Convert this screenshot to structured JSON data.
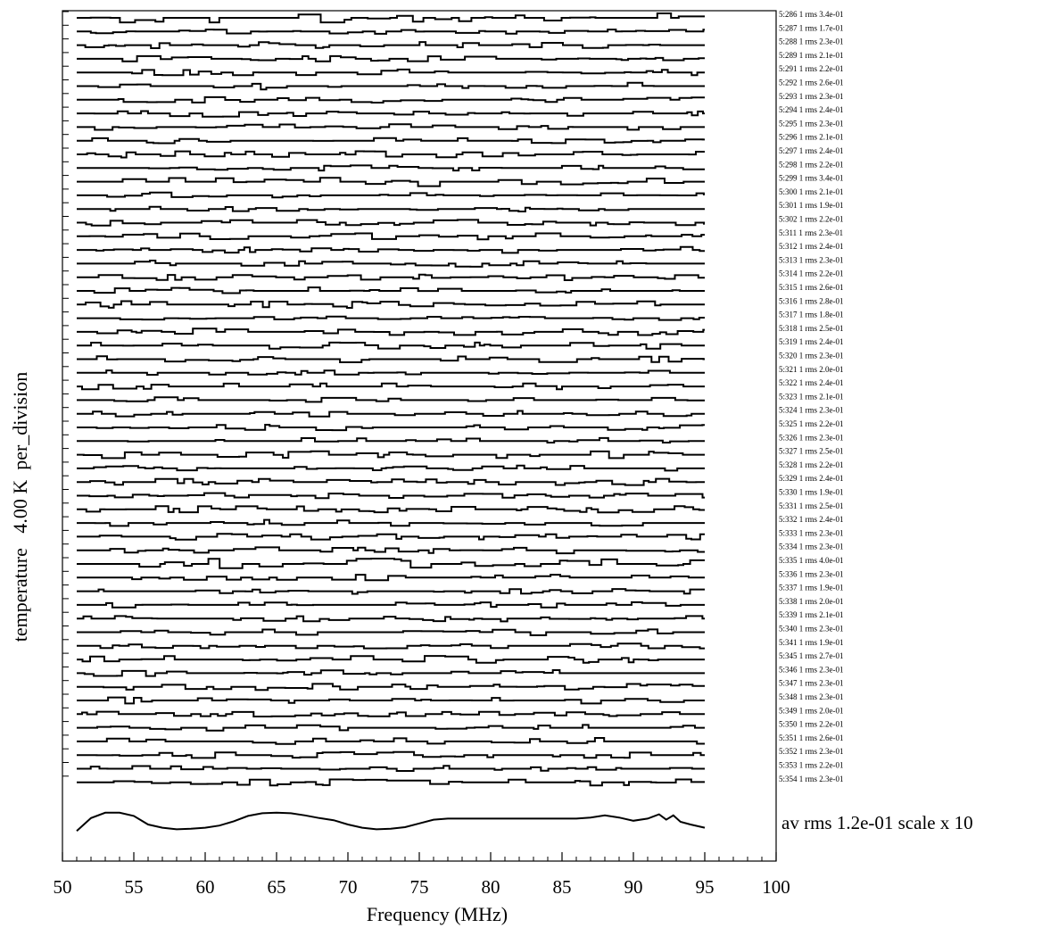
{
  "chart_data": {
    "type": "line",
    "subtype": "stacked spectra",
    "xlabel": "Frequency (MHz)",
    "ylabel": "temperature   4.00 K  per_division",
    "xlim": [
      50,
      100
    ],
    "x_ticks": [
      50,
      55,
      60,
      65,
      70,
      75,
      80,
      85,
      90,
      95,
      100
    ],
    "data_x_range": [
      51,
      95
    ],
    "series": [
      {
        "label": "5:286 1 rms 3.4e-01",
        "rms": 0.34
      },
      {
        "label": "5:287 1 rms 1.7e-01",
        "rms": 0.17
      },
      {
        "label": "5:288 1 rms 2.3e-01",
        "rms": 0.23
      },
      {
        "label": "5:289 1 rms 2.1e-01",
        "rms": 0.21
      },
      {
        "label": "5:291 1 rms 2.2e-01",
        "rms": 0.22
      },
      {
        "label": "5:292 1 rms 2.6e-01",
        "rms": 0.26
      },
      {
        "label": "5:293 1 rms 2.3e-01",
        "rms": 0.23
      },
      {
        "label": "5:294 1 rms 2.4e-01",
        "rms": 0.24
      },
      {
        "label": "5:295 1 rms 2.3e-01",
        "rms": 0.23
      },
      {
        "label": "5:296 1 rms 2.1e-01",
        "rms": 0.21
      },
      {
        "label": "5:297 1 rms 2.4e-01",
        "rms": 0.24
      },
      {
        "label": "5:298 1 rms 2.2e-01",
        "rms": 0.22
      },
      {
        "label": "5:299 1 rms 3.4e-01",
        "rms": 0.34
      },
      {
        "label": "5:300 1 rms 2.1e-01",
        "rms": 0.21
      },
      {
        "label": "5:301 1 rms 1.9e-01",
        "rms": 0.19
      },
      {
        "label": "5:302 1 rms 2.2e-01",
        "rms": 0.22
      },
      {
        "label": "5:311 1 rms 2.3e-01",
        "rms": 0.23
      },
      {
        "label": "5:312 1 rms 2.4e-01",
        "rms": 0.24
      },
      {
        "label": "5:313 1 rms 2.3e-01",
        "rms": 0.23
      },
      {
        "label": "5:314 1 rms 2.2e-01",
        "rms": 0.22
      },
      {
        "label": "5:315 1 rms 2.6e-01",
        "rms": 0.26
      },
      {
        "label": "5:316 1 rms 2.8e-01",
        "rms": 0.28
      },
      {
        "label": "5:317 1 rms 1.8e-01",
        "rms": 0.18
      },
      {
        "label": "5:318 1 rms 2.5e-01",
        "rms": 0.25
      },
      {
        "label": "5:319 1 rms 2.4e-01",
        "rms": 0.24
      },
      {
        "label": "5:320 1 rms 2.3e-01",
        "rms": 0.23
      },
      {
        "label": "5:321 1 rms 2.0e-01",
        "rms": 0.2
      },
      {
        "label": "5:322 1 rms 2.4e-01",
        "rms": 0.24
      },
      {
        "label": "5:323 1 rms 2.1e-01",
        "rms": 0.21
      },
      {
        "label": "5:324 1 rms 2.3e-01",
        "rms": 0.23
      },
      {
        "label": "5:325 1 rms 2.2e-01",
        "rms": 0.22
      },
      {
        "label": "5:326 1 rms 2.3e-01",
        "rms": 0.23
      },
      {
        "label": "5:327 1 rms 2.5e-01",
        "rms": 0.25
      },
      {
        "label": "5:328 1 rms 2.2e-01",
        "rms": 0.22
      },
      {
        "label": "5:329 1 rms 2.4e-01",
        "rms": 0.24
      },
      {
        "label": "5:330 1 rms 1.9e-01",
        "rms": 0.19
      },
      {
        "label": "5:331 1 rms 2.5e-01",
        "rms": 0.25
      },
      {
        "label": "5:332 1 rms 2.4e-01",
        "rms": 0.24
      },
      {
        "label": "5:333 1 rms 2.3e-01",
        "rms": 0.23
      },
      {
        "label": "5:334 1 rms 2.3e-01",
        "rms": 0.23
      },
      {
        "label": "5:335 1 rms 4.0e-01",
        "rms": 0.4
      },
      {
        "label": "5:336 1 rms 2.3e-01",
        "rms": 0.23
      },
      {
        "label": "5:337 1 rms 1.9e-01",
        "rms": 0.19
      },
      {
        "label": "5:338 1 rms 2.0e-01",
        "rms": 0.2
      },
      {
        "label": "5:339 1 rms 2.1e-01",
        "rms": 0.21
      },
      {
        "label": "5:340 1 rms 2.3e-01",
        "rms": 0.23
      },
      {
        "label": "5:341 1 rms 1.9e-01",
        "rms": 0.19
      },
      {
        "label": "5:345 1 rms 2.7e-01",
        "rms": 0.27
      },
      {
        "label": "5:346 1 rms 2.3e-01",
        "rms": 0.23
      },
      {
        "label": "5:347 1 rms 2.3e-01",
        "rms": 0.23
      },
      {
        "label": "5:348 1 rms 2.3e-01",
        "rms": 0.23
      },
      {
        "label": "5:349 1 rms 2.0e-01",
        "rms": 0.2
      },
      {
        "label": "5:350 1 rms 2.2e-01",
        "rms": 0.22
      },
      {
        "label": "5:351 1 rms 2.6e-01",
        "rms": 0.26
      },
      {
        "label": "5:352 1 rms 2.3e-01",
        "rms": 0.23
      },
      {
        "label": "5:353 1 rms 2.2e-01",
        "rms": 0.22
      },
      {
        "label": "5:354 1 rms 2.3e-01",
        "rms": 0.23
      }
    ],
    "average": {
      "label": "av  rms 1.2e-01 scale x 10",
      "rms": 0.12,
      "scale": 10,
      "profile": [
        [
          51,
          -0.6
        ],
        [
          52,
          0.6
        ],
        [
          53,
          1.1
        ],
        [
          54,
          1.1
        ],
        [
          55,
          0.8
        ],
        [
          56,
          0.0
        ],
        [
          57,
          -0.3
        ],
        [
          58,
          -0.45
        ],
        [
          59,
          -0.4
        ],
        [
          60,
          -0.3
        ],
        [
          61,
          -0.1
        ],
        [
          62,
          0.3
        ],
        [
          63,
          0.8
        ],
        [
          64,
          1.05
        ],
        [
          65,
          1.1
        ],
        [
          66,
          1.05
        ],
        [
          67,
          0.85
        ],
        [
          68,
          0.6
        ],
        [
          69,
          0.4
        ],
        [
          70,
          0.0
        ],
        [
          71,
          -0.3
        ],
        [
          72,
          -0.45
        ],
        [
          73,
          -0.4
        ],
        [
          74,
          -0.25
        ],
        [
          75,
          0.1
        ],
        [
          76,
          0.45
        ],
        [
          77,
          0.55
        ],
        [
          78,
          0.55
        ],
        [
          80,
          0.55
        ],
        [
          82,
          0.55
        ],
        [
          84,
          0.55
        ],
        [
          86,
          0.55
        ],
        [
          87,
          0.65
        ],
        [
          88,
          0.85
        ],
        [
          89,
          0.65
        ],
        [
          90,
          0.35
        ],
        [
          91,
          0.55
        ],
        [
          91.8,
          0.95
        ],
        [
          92.3,
          0.45
        ],
        [
          92.8,
          0.85
        ],
        [
          93.3,
          0.25
        ],
        [
          94,
          0.0
        ],
        [
          95,
          -0.3
        ]
      ]
    },
    "grid": false
  }
}
